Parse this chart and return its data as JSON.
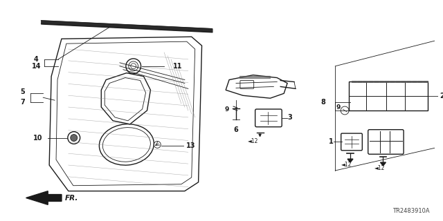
{
  "diagram_id": "TR2483910A",
  "bg_color": "#ffffff",
  "line_color": "#1a1a1a",
  "label_color": "#111111",
  "figsize": [
    6.4,
    3.2
  ],
  "dpi": 100
}
